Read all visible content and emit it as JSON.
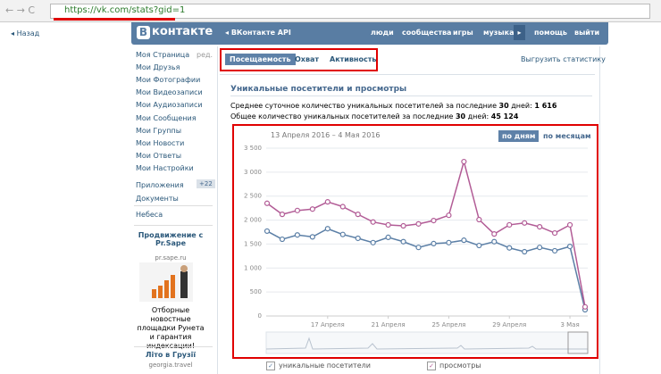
{
  "browser": {
    "url": "https://vk.com/stats?gid=1"
  },
  "back": "Назад",
  "header": {
    "logo_letter": "В",
    "logo_text": "контакте",
    "api": "ВКонтакте API",
    "nav": [
      "люди",
      "сообщества",
      "игры",
      "музыка",
      "помощь",
      "выйти"
    ]
  },
  "menu": {
    "items": [
      "Моя Страница",
      "Мои Друзья",
      "Мои Фотографии",
      "Мои Видеозаписи",
      "Мои Аудиозаписи",
      "Мои Сообщения",
      "Мои Группы",
      "Мои Новости",
      "Мои Ответы",
      "Мои Настройки"
    ],
    "edit": "ред.",
    "apps": "Приложения",
    "apps_badge": "+22",
    "docs": "Документы",
    "extra": "Небеса"
  },
  "ad": {
    "title": "Продвижение с Pr.Sape",
    "domain": "pr.sape.ru",
    "text": "Отборные новостные площадки Рунета и гарантия индексации!",
    "title2": "Літо в Грузії",
    "domain2": "georgia.travel"
  },
  "tabs": [
    "Посещаемость",
    "Охват",
    "Активность"
  ],
  "export": "Выгрузить статистику",
  "section_title": "Уникальные посетители и просмотры",
  "stats": [
    {
      "prefix": "Среднее суточное количество уникальных посетителей за последние ",
      "days": "30",
      "middle": " дней: ",
      "value": "1 616"
    },
    {
      "prefix": "Общее количество уникальных посетителей за последние ",
      "days": "30",
      "middle": " дней: ",
      "value": "45 124"
    }
  ],
  "chart": {
    "type": "line",
    "date_range": "13 Апреля 2016 – 4 Мая 2016",
    "periods": [
      "по дням",
      "по месяцам"
    ],
    "categories": [
      null,
      null,
      null,
      null,
      "17 Апреля",
      null,
      null,
      null,
      "21 Апреля",
      null,
      null,
      null,
      "25 Апреля",
      null,
      null,
      null,
      "29 Апреля",
      null,
      null,
      null,
      "3 Мая",
      null
    ],
    "ylim": [
      0,
      3500
    ],
    "yticks": [
      0,
      500,
      {
        "value": 1000,
        "label": "1 000"
      },
      {
        "value": 1500,
        "label": "1 500"
      },
      {
        "value": 2000,
        "label": "2 000"
      },
      {
        "value": 2500,
        "label": "2 500"
      },
      {
        "value": 3000,
        "label": "3 000"
      },
      {
        "value": 3500,
        "label": "3 500"
      }
    ],
    "grid": true,
    "series": [
      {
        "name": "уникальные посетители",
        "color": "#5b7fa6",
        "values": [
          1770,
          1600,
          1690,
          1650,
          1820,
          1700,
          1620,
          1530,
          1640,
          1550,
          1430,
          1510,
          1530,
          1580,
          1470,
          1550,
          1420,
          1340,
          1430,
          1360,
          1450,
          130
        ]
      },
      {
        "name": "просмотры",
        "color": "#b25c96",
        "values": [
          2350,
          2120,
          2200,
          2230,
          2380,
          2280,
          2120,
          1960,
          1900,
          1880,
          1920,
          1990,
          2100,
          3220,
          2010,
          1710,
          1900,
          1940,
          1860,
          1730,
          1900,
          190
        ]
      }
    ]
  }
}
